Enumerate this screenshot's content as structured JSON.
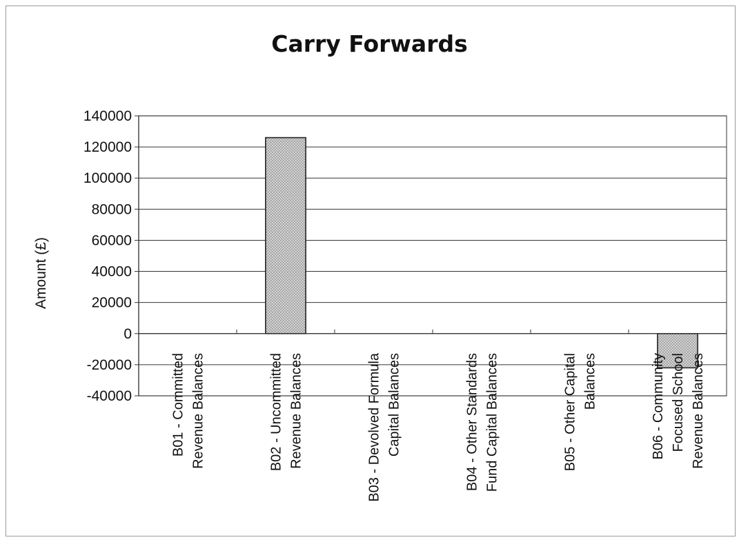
{
  "chart_data": {
    "type": "bar",
    "title": "Carry Forwards",
    "ylabel": "Amount (£)",
    "xlabel": "",
    "ylim": [
      -40000,
      140000
    ],
    "yticks": [
      140000,
      120000,
      100000,
      80000,
      60000,
      40000,
      20000,
      0,
      -20000,
      -40000
    ],
    "grid": true,
    "legend": "none",
    "categories": [
      [
        "B01 - Committed",
        "Revenue Balances"
      ],
      [
        "B02 - Uncommitted",
        "Revenue Balances"
      ],
      [
        "B03 - Devolved Formula",
        "Capital Balances"
      ],
      [
        "B04 - Other Standards",
        "Fund Capital Balances"
      ],
      [
        "B05 - Other Capital",
        "Balances"
      ],
      [
        "B06 - Community",
        "Focused School",
        "Revenue Balances"
      ]
    ],
    "values": [
      0,
      126000,
      0,
      0,
      0,
      -22000
    ],
    "colors": {
      "bar_fill": "#a9a9a9",
      "bar_dot": "#e8e8e8",
      "bar_edge": "#222222",
      "grid": "#333333"
    }
  }
}
